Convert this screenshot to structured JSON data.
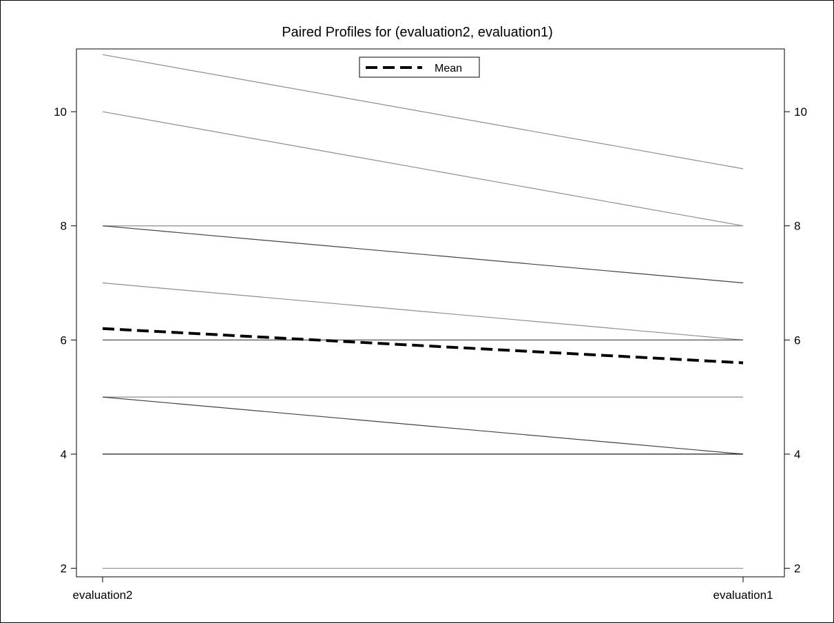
{
  "chart_data": {
    "type": "line",
    "title": "Paired Profiles for (evaluation2, evaluation1)",
    "categories": [
      "evaluation2",
      "evaluation1"
    ],
    "ylim": [
      1.85,
      11.1
    ],
    "yticks": [
      2,
      4,
      6,
      8,
      10
    ],
    "profiles": [
      {
        "values": [
          11,
          9
        ],
        "color": "#8c8c8c"
      },
      {
        "values": [
          10,
          8
        ],
        "color": "#8c8c8c"
      },
      {
        "values": [
          8,
          8
        ],
        "color": "#8c8c8c"
      },
      {
        "values": [
          8,
          7
        ],
        "color": "#404040"
      },
      {
        "values": [
          7,
          6
        ],
        "color": "#8c8c8c"
      },
      {
        "values": [
          6,
          6
        ],
        "color": "#404040"
      },
      {
        "values": [
          5,
          5
        ],
        "color": "#8c8c8c"
      },
      {
        "values": [
          5,
          4
        ],
        "color": "#404040"
      },
      {
        "values": [
          4,
          4
        ],
        "color": "#000000"
      },
      {
        "values": [
          2,
          2
        ],
        "color": "#8c8c8c"
      }
    ],
    "mean": {
      "name": "Mean",
      "values": [
        6.2,
        5.6
      ]
    },
    "legend": {
      "position": "top-center",
      "entries": [
        "Mean"
      ]
    },
    "grid": false,
    "colors": {
      "mean": "#000000",
      "axis": "#000000"
    }
  }
}
